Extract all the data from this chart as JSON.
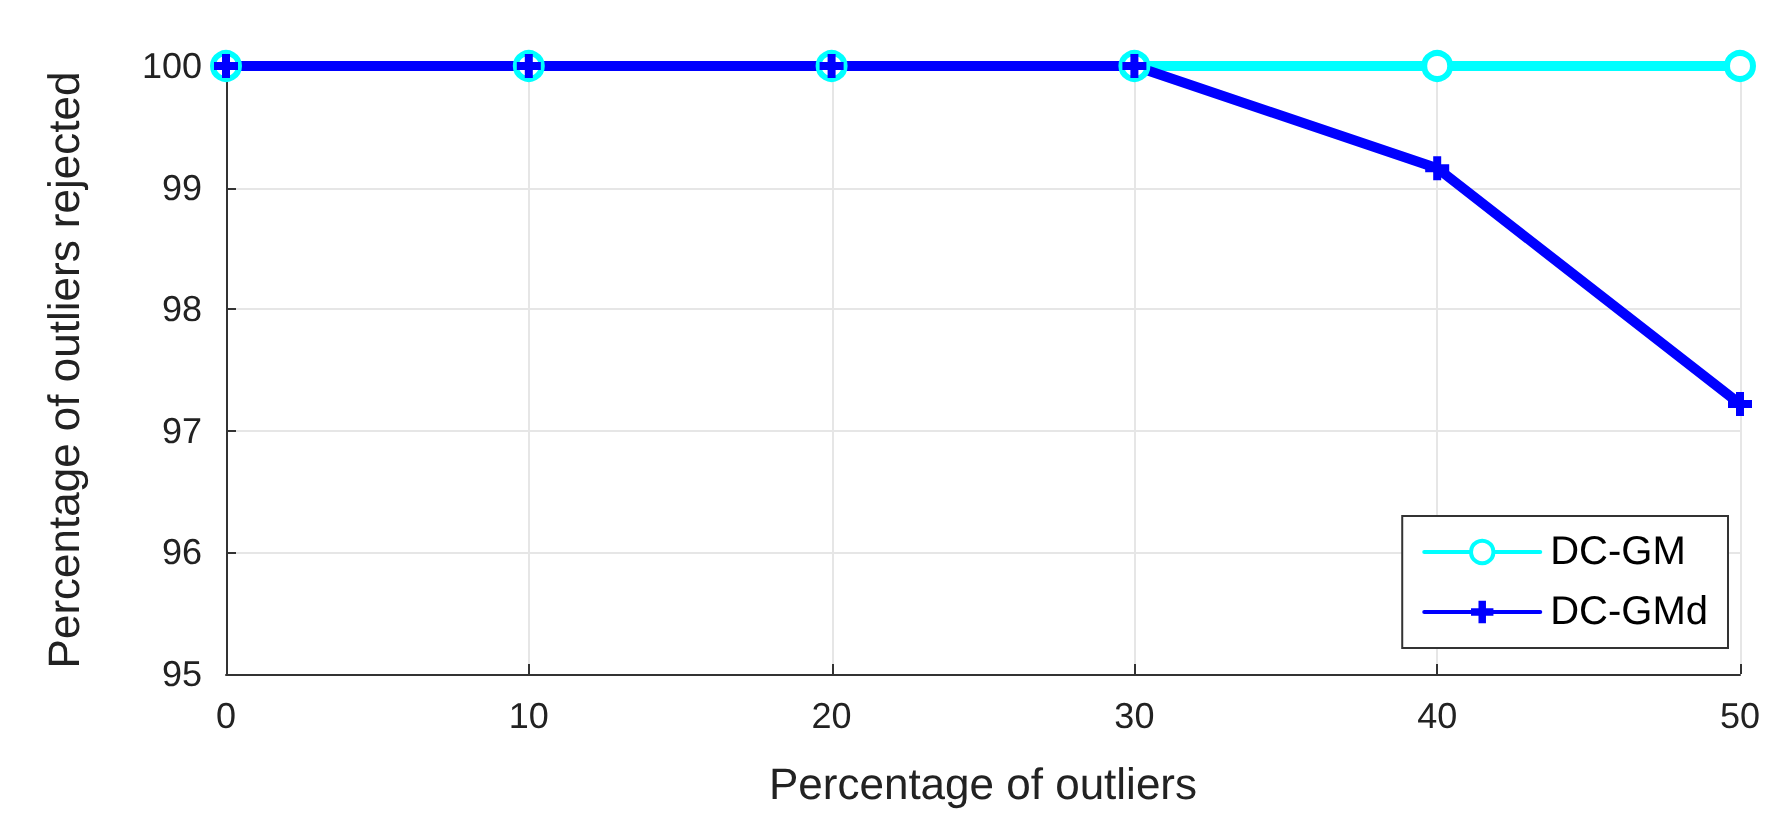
{
  "chart_data": {
    "type": "line",
    "xlabel": "Percentage of outliers",
    "ylabel": "Percentage of outliers rejected",
    "x": [
      0,
      10,
      20,
      30,
      40,
      50
    ],
    "xlim": [
      0,
      50
    ],
    "xticks": [
      0,
      10,
      20,
      30,
      40,
      50
    ],
    "ylim": [
      95,
      100
    ],
    "yticks": [
      95,
      96,
      97,
      98,
      99,
      100
    ],
    "grid": true,
    "legend": "bottom right",
    "line_style": "solid",
    "series": [
      {
        "name": "DC-GM",
        "color": "#00ffff",
        "marker": "circle",
        "values": [
          100,
          100,
          100,
          100,
          100,
          100
        ]
      },
      {
        "name": "DC-GMd",
        "color": "#0000ff",
        "marker": "cross",
        "values": [
          100,
          100,
          100,
          100,
          99.16,
          97.22
        ]
      }
    ]
  }
}
